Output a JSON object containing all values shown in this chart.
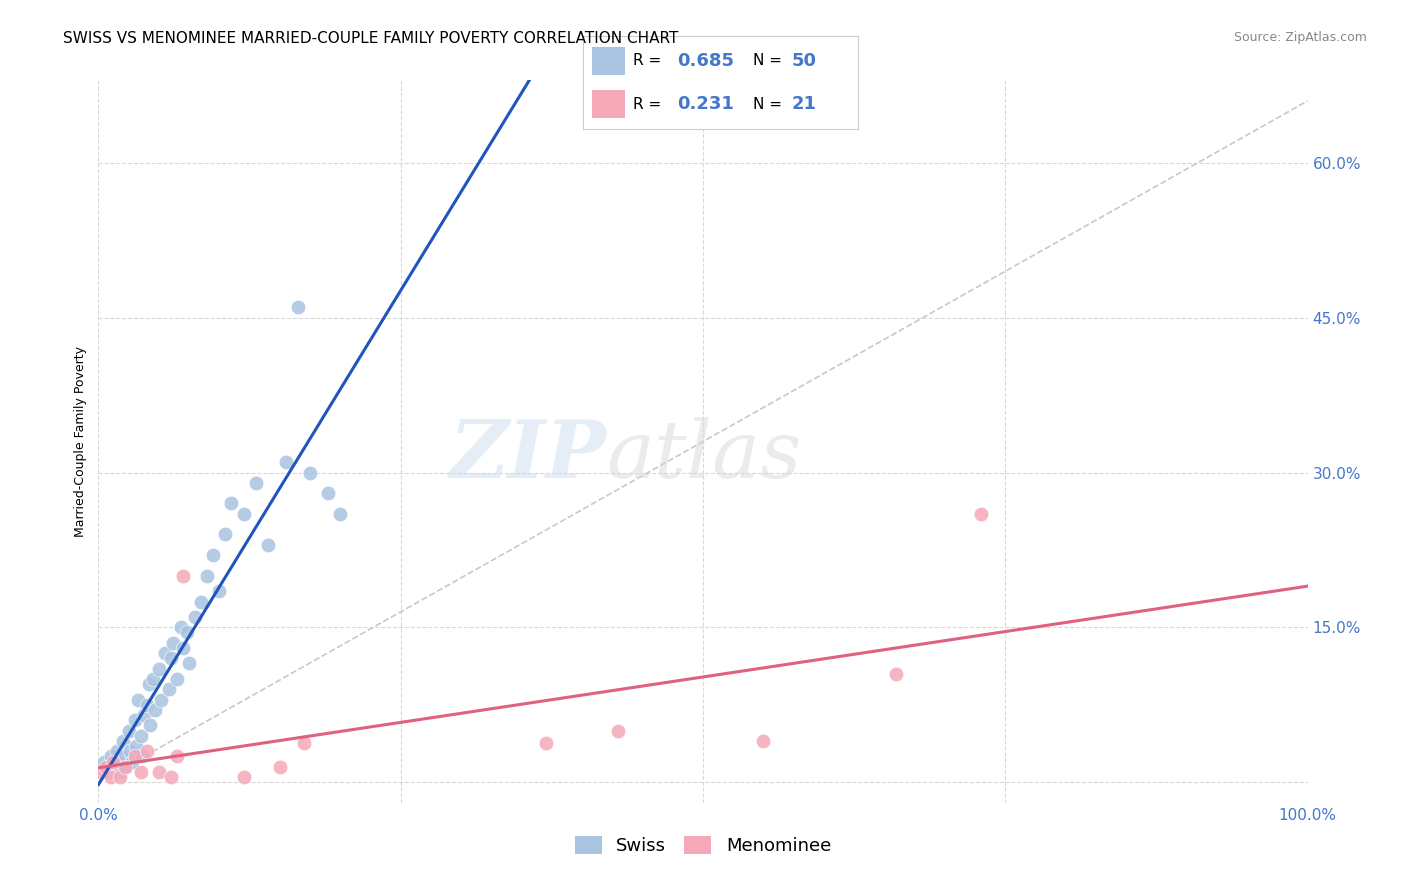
{
  "title": "SWISS VS MENOMINEE MARRIED-COUPLE FAMILY POVERTY CORRELATION CHART",
  "source": "Source: ZipAtlas.com",
  "ylabel": "Married-Couple Family Poverty",
  "xlim": [
    0.0,
    1.0
  ],
  "ylim": [
    -0.02,
    0.68
  ],
  "xticks": [
    0.0,
    0.25,
    0.5,
    0.75,
    1.0
  ],
  "xticklabels": [
    "0.0%",
    "",
    "",
    "",
    "100.0%"
  ],
  "yticks_left": [],
  "yticks_right": [
    0.0,
    0.15,
    0.3,
    0.45,
    0.6
  ],
  "yticklabels_right": [
    "",
    "15.0%",
    "30.0%",
    "45.0%",
    "60.0%"
  ],
  "swiss_R": 0.685,
  "swiss_N": 50,
  "menominee_R": 0.231,
  "menominee_N": 21,
  "swiss_color": "#a8c4e0",
  "menominee_color": "#f4a8b8",
  "swiss_line_color": "#2255bb",
  "menominee_line_color": "#e06080",
  "diagonal_color": "#c8c8c8",
  "background_color": "#ffffff",
  "grid_color": "#d8d8d8",
  "swiss_x": [
    0.005,
    0.008,
    0.01,
    0.012,
    0.015,
    0.016,
    0.018,
    0.02,
    0.022,
    0.023,
    0.025,
    0.026,
    0.028,
    0.03,
    0.031,
    0.033,
    0.035,
    0.036,
    0.038,
    0.04,
    0.042,
    0.043,
    0.045,
    0.047,
    0.05,
    0.052,
    0.055,
    0.058,
    0.06,
    0.062,
    0.065,
    0.068,
    0.07,
    0.073,
    0.075,
    0.08,
    0.085,
    0.09,
    0.095,
    0.1,
    0.105,
    0.11,
    0.12,
    0.13,
    0.14,
    0.155,
    0.165,
    0.175,
    0.19,
    0.2
  ],
  "swiss_y": [
    0.02,
    0.01,
    0.025,
    0.015,
    0.03,
    0.02,
    0.01,
    0.04,
    0.025,
    0.015,
    0.05,
    0.03,
    0.02,
    0.06,
    0.035,
    0.08,
    0.045,
    0.025,
    0.065,
    0.075,
    0.095,
    0.055,
    0.1,
    0.07,
    0.11,
    0.08,
    0.125,
    0.09,
    0.12,
    0.135,
    0.1,
    0.15,
    0.13,
    0.145,
    0.115,
    0.16,
    0.175,
    0.2,
    0.22,
    0.185,
    0.24,
    0.27,
    0.26,
    0.29,
    0.23,
    0.31,
    0.46,
    0.3,
    0.28,
    0.26
  ],
  "menominee_x": [
    0.003,
    0.006,
    0.01,
    0.012,
    0.018,
    0.022,
    0.03,
    0.035,
    0.04,
    0.05,
    0.06,
    0.065,
    0.07,
    0.12,
    0.15,
    0.17,
    0.37,
    0.43,
    0.55,
    0.66,
    0.73
  ],
  "menominee_y": [
    0.01,
    0.015,
    0.005,
    0.02,
    0.005,
    0.015,
    0.025,
    0.01,
    0.03,
    0.01,
    0.005,
    0.025,
    0.2,
    0.005,
    0.015,
    0.038,
    0.038,
    0.05,
    0.04,
    0.105,
    0.26
  ],
  "watermark_zip": "ZIP",
  "watermark_atlas": "atlas",
  "title_fontsize": 11,
  "axis_label_fontsize": 9,
  "tick_fontsize": 11,
  "source_fontsize": 9
}
